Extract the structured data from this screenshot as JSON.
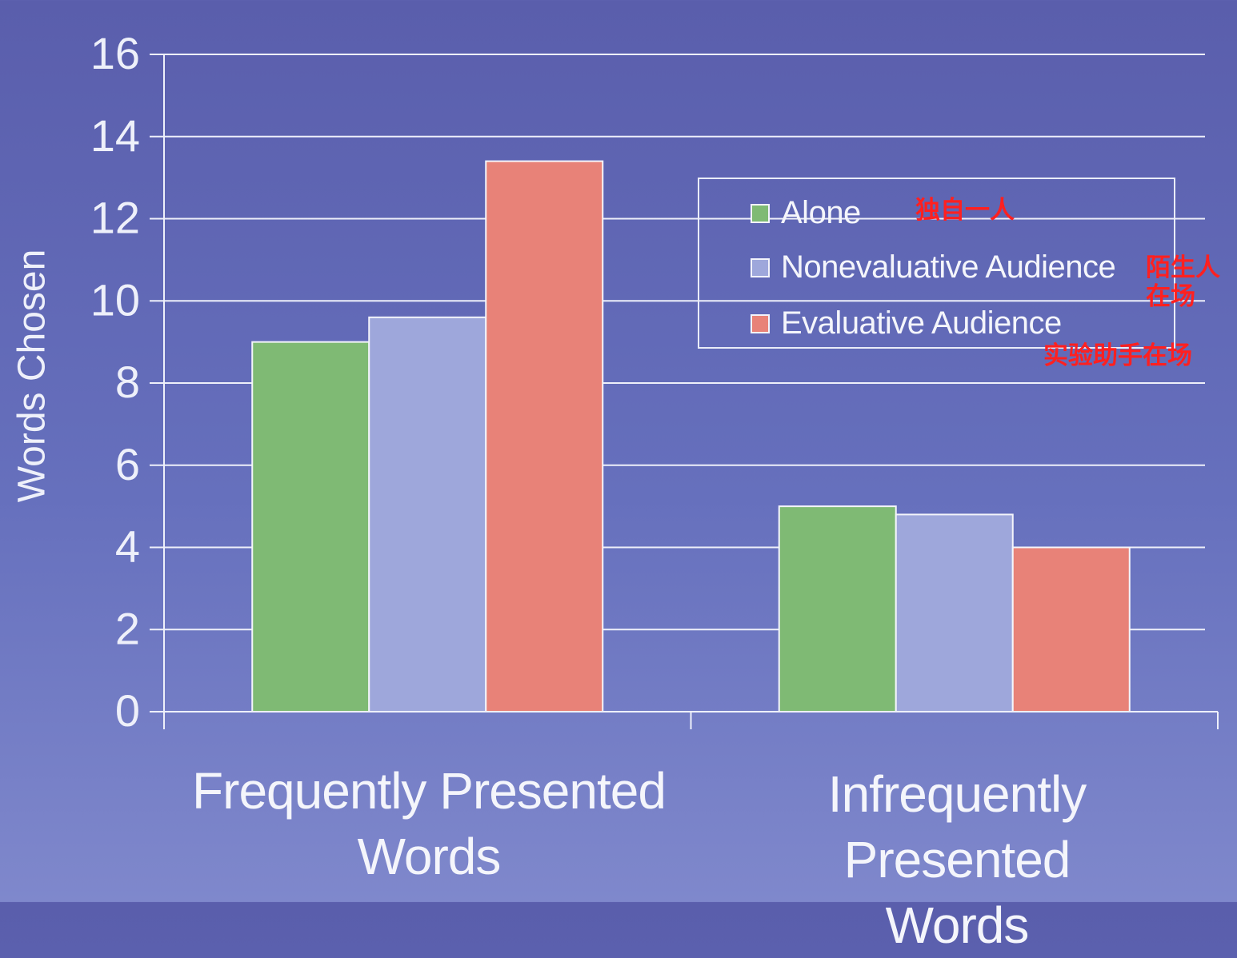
{
  "chart_data": {
    "type": "bar",
    "categories": [
      "Frequently Presented Words",
      "Infrequently Presented Words"
    ],
    "category_lines": [
      [
        "Frequently Presented",
        "Words"
      ],
      [
        "Infrequently Presented",
        "Words"
      ]
    ],
    "series": [
      {
        "name": "Alone",
        "values": [
          9.0,
          5.0
        ],
        "color": "#7fba74"
      },
      {
        "name": "Nonevaluative Audience",
        "values": [
          9.6,
          4.8
        ],
        "color": "#9ea7db"
      },
      {
        "name": "Evaluative Audience",
        "values": [
          13.4,
          4.0
        ],
        "color": "#e88278"
      }
    ],
    "ylabel": "Words Chosen",
    "xlabel": "",
    "ylim": [
      0,
      16
    ],
    "yticks": [
      "0",
      "2",
      "4",
      "6",
      "8",
      "10",
      "12",
      "14",
      "16"
    ],
    "grid": true,
    "legend_position": "top-right"
  },
  "annotations": {
    "alone": "独自一人",
    "nonevaluative_line1": "陌生人",
    "nonevaluative_line2": "在场",
    "evaluative": "实验助手在场"
  },
  "colors": {
    "grid_and_axes": "#eef0fa",
    "annotation_text": "#ff2020",
    "bar_outline": "#f4f5fb"
  }
}
